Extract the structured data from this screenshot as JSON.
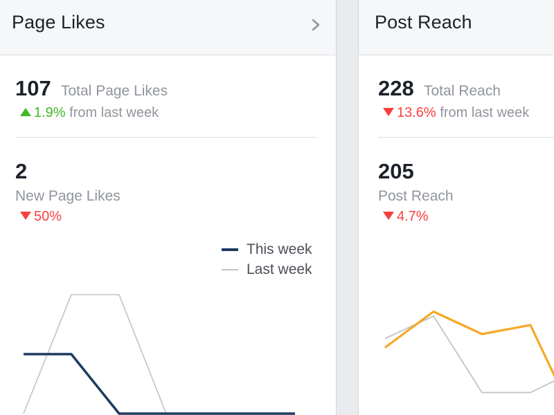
{
  "page_likes": {
    "title": "Page Likes",
    "total_value": "107",
    "total_label": "Total Page Likes",
    "total_change_pct": "1.9%",
    "total_change_text": "from last week",
    "total_change_dir": "up",
    "new_value": "2",
    "new_label": "New Page Likes",
    "new_change_pct": "50%",
    "new_change_dir": "down",
    "legend": {
      "this_week": "This week",
      "last_week": "Last week"
    }
  },
  "post_reach": {
    "title": "Post Reach",
    "total_value": "228",
    "total_label": "Total Reach",
    "total_change_pct": "13.6%",
    "total_change_text": "from last week",
    "total_change_dir": "down",
    "post_value": "205",
    "post_label": "Post Reach",
    "post_change_pct": "4.7%",
    "post_change_dir": "down"
  },
  "colors": {
    "up": "#42b72a",
    "down": "#fa3e3e",
    "this_week_line": "#1d3a5f",
    "last_week_line": "#bec3c9",
    "reach_line": "#f7a823"
  },
  "chart_data": [
    {
      "type": "line",
      "series": [
        {
          "name": "This week",
          "values": [
            1,
            1,
            0,
            0,
            0,
            0
          ]
        },
        {
          "name": "Last week",
          "values": [
            0,
            2,
            2,
            0,
            0,
            0
          ]
        }
      ]
    },
    {
      "type": "line",
      "series": [
        {
          "name": "",
          "values": [
            30,
            38,
            33,
            35,
            22
          ]
        },
        {
          "name": "",
          "values": [
            32,
            37,
            20,
            20,
            23
          ]
        }
      ]
    }
  ]
}
